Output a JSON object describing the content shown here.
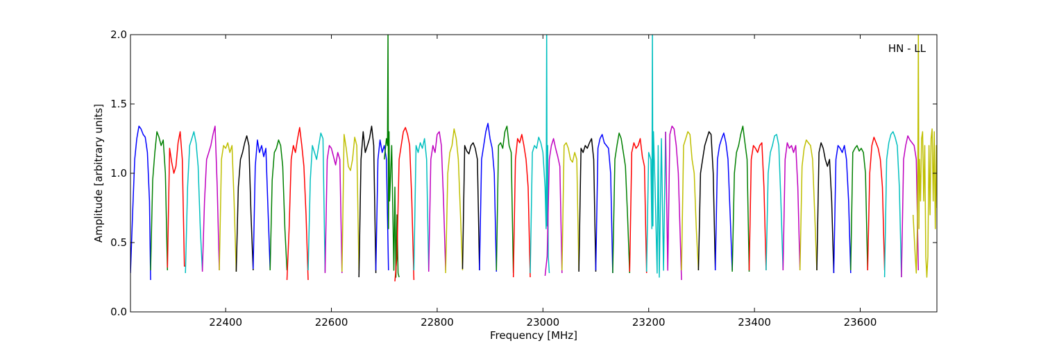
{
  "chart_data": {
    "type": "line",
    "annotation": "HN - LL",
    "xlabel": "Frequency [MHz]",
    "ylabel": "Amplitude [arbitrary units]",
    "xlim": [
      22220,
      23745
    ],
    "ylim": [
      0.0,
      2.0
    ],
    "x_ticks": [
      22400,
      22600,
      22800,
      23000,
      23200,
      23400,
      23600
    ],
    "x_tick_labels": [
      "22400",
      "22600",
      "22800",
      "23000",
      "23200",
      "23400",
      "23600"
    ],
    "y_ticks": [
      0.0,
      0.5,
      1.0,
      1.5,
      2.0
    ],
    "y_tick_labels": [
      "0.0",
      "0.5",
      "1.0",
      "1.5",
      "2.0"
    ],
    "grid": false,
    "series_colors": [
      "#0000ff",
      "#008000",
      "#ff0000",
      "#00bfbf",
      "#bf00bf",
      "#bfbf00",
      "#000000"
    ],
    "segments": [
      {
        "x": [
          22220,
          22224,
          22228,
          22232,
          22236,
          22240,
          22244,
          22248,
          22252,
          22256,
          22258
        ],
        "y": [
          0.28,
          0.7,
          1.1,
          1.25,
          1.34,
          1.32,
          1.28,
          1.26,
          1.15,
          0.8,
          0.23
        ]
      },
      {
        "x": [
          22258,
          22262,
          22266,
          22270,
          22274,
          22278,
          22282,
          22286,
          22290
        ],
        "y": [
          0.3,
          0.95,
          1.15,
          1.3,
          1.26,
          1.2,
          1.24,
          1.0,
          0.3
        ]
      },
      {
        "x": [
          22290,
          22294,
          22298,
          22302,
          22306,
          22310,
          22314,
          22318,
          22322,
          22324
        ],
        "y": [
          0.32,
          1.18,
          1.08,
          1.0,
          1.05,
          1.22,
          1.3,
          1.1,
          0.33,
          0.33
        ]
      },
      {
        "x": [
          22324,
          22328,
          22332,
          22336,
          22340,
          22344,
          22348,
          22352,
          22356
        ],
        "y": [
          0.28,
          0.9,
          1.2,
          1.25,
          1.3,
          1.22,
          1.05,
          0.6,
          0.3
        ]
      },
      {
        "x": [
          22356,
          22360,
          22364,
          22368,
          22372,
          22376,
          22380,
          22384,
          22388
        ],
        "y": [
          0.29,
          0.8,
          1.1,
          1.15,
          1.2,
          1.28,
          1.34,
          0.9,
          0.3
        ]
      },
      {
        "x": [
          22388,
          22392,
          22396,
          22400,
          22404,
          22408,
          22412,
          22416,
          22420
        ],
        "y": [
          0.3,
          1.1,
          1.2,
          1.18,
          1.22,
          1.15,
          1.2,
          0.8,
          0.29
        ]
      },
      {
        "x": [
          22420,
          22424,
          22428,
          22432,
          22436,
          22440,
          22444,
          22448,
          22452
        ],
        "y": [
          0.29,
          0.9,
          1.1,
          1.15,
          1.22,
          1.27,
          1.2,
          0.7,
          0.3
        ]
      },
      {
        "x": [
          22452,
          22456,
          22460,
          22464,
          22468,
          22472,
          22476,
          22480,
          22484
        ],
        "y": [
          0.31,
          1.05,
          1.24,
          1.15,
          1.2,
          1.12,
          1.18,
          0.75,
          0.31
        ]
      },
      {
        "x": [
          22484,
          22488,
          22492,
          22496,
          22500,
          22504,
          22508,
          22512,
          22516
        ],
        "y": [
          0.3,
          0.95,
          1.15,
          1.18,
          1.24,
          1.2,
          1.05,
          0.6,
          0.3
        ]
      },
      {
        "x": [
          22516,
          22520,
          22524,
          22528,
          22532,
          22536,
          22540,
          22544,
          22548,
          22552,
          22556
        ],
        "y": [
          0.23,
          0.6,
          1.1,
          1.2,
          1.15,
          1.25,
          1.33,
          1.2,
          1.05,
          0.7,
          0.23
        ]
      },
      {
        "x": [
          22556,
          22560,
          22564,
          22568,
          22572,
          22576,
          22580,
          22584,
          22588
        ],
        "y": [
          0.3,
          0.95,
          1.2,
          1.15,
          1.1,
          1.2,
          1.29,
          1.25,
          0.29
        ]
      },
      {
        "x": [
          22588,
          22592,
          22596,
          22600,
          22604,
          22608,
          22612,
          22616,
          22620
        ],
        "y": [
          0.28,
          1.1,
          1.2,
          1.18,
          1.12,
          1.06,
          1.15,
          1.1,
          0.28
        ]
      },
      {
        "x": [
          22620,
          22624,
          22628,
          22632,
          22636,
          22640,
          22644,
          22648,
          22652
        ],
        "y": [
          0.29,
          1.28,
          1.18,
          1.05,
          1.02,
          1.1,
          1.26,
          1.2,
          0.3
        ]
      },
      {
        "x": [
          22652,
          22656,
          22660,
          22664,
          22668,
          22672,
          22676,
          22680,
          22684
        ],
        "y": [
          0.25,
          1.1,
          1.3,
          1.15,
          1.2,
          1.25,
          1.34,
          1.2,
          0.28
        ]
      },
      {
        "x": [
          22684,
          22688,
          22692,
          22696,
          22700,
          22704,
          22708
        ],
        "y": [
          0.3,
          1.1,
          1.24,
          1.15,
          1.2,
          1.1,
          0.3
        ]
      },
      {
        "x": [
          22700,
          22704,
          22706,
          22707,
          22708,
          22709,
          22710,
          22714,
          22718,
          22720,
          22722,
          22724,
          22726,
          22728
        ],
        "y": [
          1.1,
          1.25,
          1.2,
          2.05,
          0.6,
          1.3,
          0.8,
          1.2,
          0.3,
          0.9,
          0.25,
          0.7,
          0.28,
          0.25
        ]
      },
      {
        "x": [
          22720,
          22724,
          22728,
          22732,
          22736,
          22740,
          22744,
          22748,
          22752,
          22756
        ],
        "y": [
          0.22,
          0.4,
          1.1,
          1.2,
          1.3,
          1.33,
          1.28,
          1.2,
          0.8,
          0.23
        ]
      },
      {
        "x": [
          22756,
          22760,
          22764,
          22768,
          22772,
          22776,
          22780,
          22784
        ],
        "y": [
          0.3,
          1.2,
          1.15,
          1.22,
          1.18,
          1.25,
          1.1,
          0.3
        ]
      },
      {
        "x": [
          22784,
          22788,
          22792,
          22796,
          22800,
          22804,
          22808,
          22812,
          22816
        ],
        "y": [
          0.29,
          1.1,
          1.2,
          1.15,
          1.28,
          1.3,
          1.2,
          0.8,
          0.3
        ]
      },
      {
        "x": [
          22816,
          22820,
          22824,
          22828,
          22832,
          22836,
          22840,
          22844,
          22848
        ],
        "y": [
          0.28,
          1.0,
          1.15,
          1.2,
          1.32,
          1.25,
          1.1,
          0.7,
          0.3
        ]
      },
      {
        "x": [
          22848,
          22852,
          22856,
          22860,
          22864,
          22868,
          22872,
          22876,
          22880
        ],
        "y": [
          0.31,
          1.2,
          1.16,
          1.14,
          1.2,
          1.22,
          1.18,
          1.1,
          0.3
        ]
      },
      {
        "x": [
          22880,
          22884,
          22888,
          22892,
          22896,
          22900,
          22904,
          22908,
          22912
        ],
        "y": [
          0.3,
          1.1,
          1.2,
          1.3,
          1.36,
          1.25,
          1.18,
          1.0,
          0.29
        ]
      },
      {
        "x": [
          22912,
          22916,
          22920,
          22924,
          22928,
          22932,
          22936,
          22940,
          22944
        ],
        "y": [
          0.3,
          1.2,
          1.22,
          1.18,
          1.3,
          1.34,
          1.2,
          1.15,
          0.28
        ]
      },
      {
        "x": [
          22944,
          22948,
          22952,
          22956,
          22960,
          22964,
          22968,
          22972,
          22976
        ],
        "y": [
          0.25,
          1.1,
          1.25,
          1.22,
          1.28,
          1.2,
          1.1,
          0.9,
          0.25
        ]
      },
      {
        "x": [
          22976,
          22980,
          22984,
          22988,
          22992,
          22996,
          23000,
          23004,
          23006,
          23007,
          23008,
          23009,
          23010,
          23012
        ],
        "y": [
          0.28,
          1.15,
          1.2,
          1.18,
          1.26,
          1.22,
          1.15,
          0.9,
          0.6,
          2.05,
          0.62,
          1.2,
          0.4,
          0.28
        ]
      },
      {
        "x": [
          23004,
          23008,
          23012,
          23016,
          23020,
          23024,
          23028,
          23032,
          23036
        ],
        "y": [
          0.26,
          0.4,
          1.1,
          1.2,
          1.25,
          1.18,
          1.12,
          1.05,
          0.28
        ]
      },
      {
        "x": [
          23036,
          23040,
          23044,
          23048,
          23052,
          23056,
          23060,
          23064,
          23068
        ],
        "y": [
          0.3,
          1.2,
          1.22,
          1.18,
          1.1,
          1.08,
          1.15,
          1.1,
          0.3
        ]
      },
      {
        "x": [
          23068,
          23072,
          23076,
          23080,
          23084,
          23088,
          23092,
          23096,
          23100
        ],
        "y": [
          0.29,
          1.18,
          1.15,
          1.2,
          1.18,
          1.22,
          1.25,
          1.1,
          0.29
        ]
      },
      {
        "x": [
          23100,
          23104,
          23108,
          23112,
          23116,
          23120,
          23124,
          23128,
          23132
        ],
        "y": [
          0.3,
          1.18,
          1.25,
          1.28,
          1.22,
          1.2,
          1.18,
          1.0,
          0.28
        ]
      },
      {
        "x": [
          23132,
          23136,
          23140,
          23144,
          23148,
          23152,
          23156,
          23160,
          23164
        ],
        "y": [
          0.28,
          1.1,
          1.2,
          1.29,
          1.25,
          1.15,
          1.05,
          0.7,
          0.28
        ]
      },
      {
        "x": [
          23164,
          23168,
          23172,
          23176,
          23180,
          23184,
          23188,
          23192,
          23196
        ],
        "y": [
          0.29,
          1.15,
          1.22,
          1.18,
          1.2,
          1.25,
          1.12,
          1.05,
          0.28
        ]
      },
      {
        "x": [
          23196,
          23200,
          23204,
          23206,
          23207,
          23208,
          23209,
          23212,
          23216,
          23218,
          23220,
          23224,
          23228,
          23232
        ],
        "y": [
          0.29,
          1.15,
          1.1,
          0.6,
          2.05,
          0.62,
          1.3,
          0.9,
          0.28,
          1.2,
          0.25,
          1.25,
          0.3,
          1.3
        ]
      },
      {
        "x": [
          23232,
          23236,
          23240,
          23244,
          23248,
          23252,
          23256,
          23260,
          23262
        ],
        "y": [
          1.3,
          0.3,
          1.28,
          1.34,
          1.32,
          1.2,
          1.0,
          0.5,
          0.23
        ]
      },
      {
        "x": [
          23262,
          23266,
          23270,
          23274,
          23278,
          23282,
          23286,
          23290,
          23294
        ],
        "y": [
          0.3,
          1.2,
          1.25,
          1.3,
          1.28,
          1.1,
          1.0,
          0.6,
          0.3
        ]
      },
      {
        "x": [
          23294,
          23298,
          23302,
          23306,
          23310,
          23314,
          23318,
          23322,
          23326
        ],
        "y": [
          0.3,
          1.0,
          1.1,
          1.2,
          1.25,
          1.3,
          1.28,
          1.0,
          0.3
        ]
      },
      {
        "x": [
          23326,
          23330,
          23334,
          23338,
          23342,
          23346,
          23350,
          23354,
          23358
        ],
        "y": [
          0.3,
          1.1,
          1.2,
          1.25,
          1.29,
          1.22,
          1.1,
          0.7,
          0.3
        ]
      },
      {
        "x": [
          23358,
          23362,
          23366,
          23370,
          23374,
          23378,
          23382,
          23386,
          23390
        ],
        "y": [
          0.29,
          1.0,
          1.15,
          1.2,
          1.28,
          1.34,
          1.22,
          1.1,
          0.29
        ]
      },
      {
        "x": [
          23390,
          23394,
          23398,
          23402,
          23406,
          23410,
          23414,
          23418,
          23422
        ],
        "y": [
          0.3,
          1.1,
          1.2,
          1.18,
          1.15,
          1.2,
          1.22,
          0.9,
          0.3
        ]
      },
      {
        "x": [
          23422,
          23426,
          23430,
          23434,
          23438,
          23442,
          23446,
          23450,
          23454
        ],
        "y": [
          0.3,
          1.0,
          1.15,
          1.2,
          1.27,
          1.28,
          1.2,
          0.8,
          0.3
        ]
      },
      {
        "x": [
          23454,
          23458,
          23462,
          23466,
          23470,
          23474,
          23478,
          23482,
          23486
        ],
        "y": [
          0.3,
          1.1,
          1.22,
          1.18,
          1.2,
          1.15,
          1.2,
          0.9,
          0.3
        ]
      },
      {
        "x": [
          23486,
          23490,
          23494,
          23498,
          23502,
          23506,
          23510,
          23514,
          23518
        ],
        "y": [
          0.3,
          1.05,
          1.18,
          1.24,
          1.22,
          1.2,
          1.1,
          0.7,
          0.3
        ]
      },
      {
        "x": [
          23518,
          23522,
          23526,
          23530,
          23534,
          23538,
          23542,
          23546,
          23550
        ],
        "y": [
          0.3,
          1.15,
          1.22,
          1.18,
          1.1,
          1.05,
          1.1,
          0.8,
          0.28
        ]
      },
      {
        "x": [
          23550,
          23554,
          23558,
          23562,
          23566,
          23570,
          23574,
          23578,
          23582
        ],
        "y": [
          0.28,
          1.1,
          1.2,
          1.18,
          1.15,
          1.2,
          1.1,
          0.8,
          0.28
        ]
      },
      {
        "x": [
          23582,
          23586,
          23590,
          23594,
          23598,
          23602,
          23606,
          23610,
          23614
        ],
        "y": [
          0.3,
          1.15,
          1.18,
          1.2,
          1.16,
          1.18,
          1.15,
          1.0,
          0.3
        ]
      },
      {
        "x": [
          23614,
          23618,
          23622,
          23626,
          23630,
          23634,
          23638,
          23642,
          23646
        ],
        "y": [
          0.3,
          1.0,
          1.2,
          1.26,
          1.22,
          1.18,
          1.1,
          0.9,
          0.3
        ]
      },
      {
        "x": [
          23646,
          23650,
          23654,
          23658,
          23662,
          23666,
          23670,
          23674,
          23678
        ],
        "y": [
          0.25,
          1.1,
          1.22,
          1.28,
          1.3,
          1.26,
          1.2,
          0.9,
          0.25
        ]
      },
      {
        "x": [
          23678,
          23682,
          23686,
          23690,
          23694,
          23698,
          23702,
          23706,
          23710
        ],
        "y": [
          0.25,
          1.1,
          1.2,
          1.27,
          1.24,
          1.22,
          1.2,
          1.1,
          0.3
        ]
      },
      {
        "x": [
          23700,
          23704,
          23706,
          23708,
          23709,
          23710,
          23711,
          23712,
          23714,
          23716,
          23718,
          23720,
          23722,
          23724,
          23726,
          23728,
          23730,
          23732,
          23734,
          23736,
          23738,
          23740,
          23742,
          23744,
          23745
        ],
        "y": [
          0.7,
          0.4,
          0.28,
          0.6,
          1.1,
          2.05,
          0.6,
          1.1,
          0.8,
          1.25,
          1.3,
          0.8,
          1.2,
          0.4,
          0.25,
          0.4,
          1.2,
          0.7,
          1.25,
          1.32,
          0.8,
          1.3,
          0.6,
          1.2,
          0.75
        ]
      }
    ]
  }
}
